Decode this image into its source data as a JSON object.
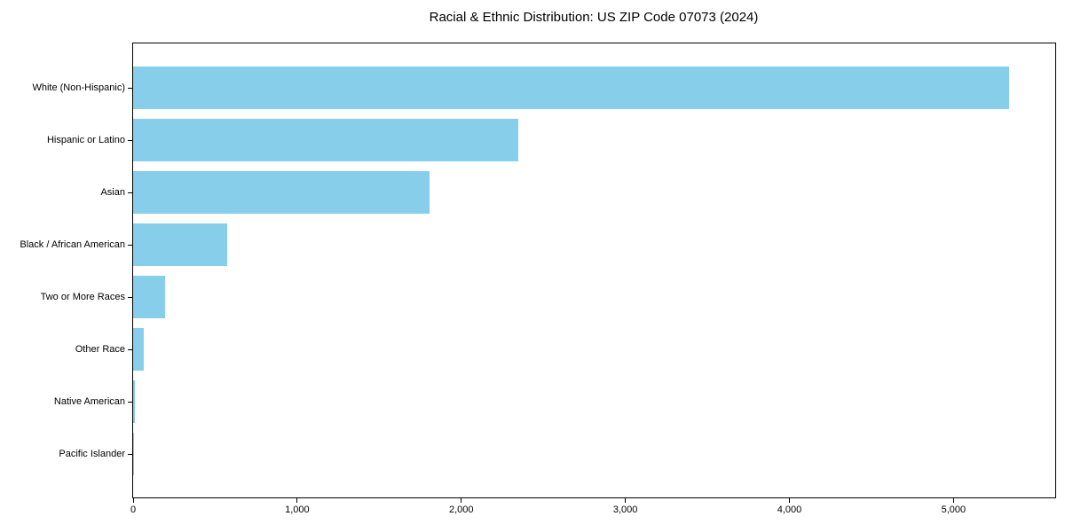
{
  "chart_data": {
    "type": "bar",
    "orientation": "horizontal",
    "title": "Racial & Ethnic Distribution: US ZIP Code 07073 (2024)",
    "categories": [
      "White (Non-Hispanic)",
      "Hispanic or Latino",
      "Asian",
      "Black / African American",
      "Two or More Races",
      "Other Race",
      "Native American",
      "Pacific Islander"
    ],
    "values": [
      5340,
      2345,
      1805,
      575,
      195,
      65,
      10,
      5
    ],
    "xlabel": "",
    "ylabel": "",
    "xlim": [
      0,
      5620
    ],
    "xticks": [
      0,
      1000,
      2000,
      3000,
      4000,
      5000
    ],
    "xtick_labels": [
      "0",
      "1,000",
      "2,000",
      "3,000",
      "4,000",
      "5,000"
    ],
    "bar_color": "#87CEEB",
    "grid": false,
    "legend_position": "none",
    "background_color": "#ffffff"
  }
}
